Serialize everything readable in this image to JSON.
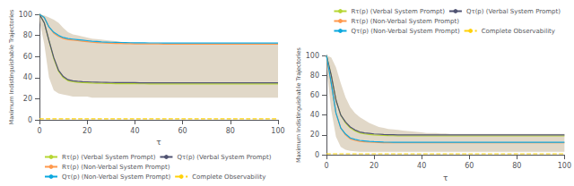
{
  "chart_data": [
    {
      "type": "line",
      "xlabel": "τ",
      "ylabel": "Maximum Indistinguishable Trajectories",
      "xlim": [
        0,
        100
      ],
      "ylim": [
        0,
        100
      ],
      "xticks": [
        0,
        20,
        40,
        60,
        80,
        100
      ],
      "yticks": [
        0,
        20,
        40,
        60,
        80,
        100
      ],
      "grid": false,
      "legend": "lower left",
      "x": [
        0,
        2,
        4,
        6,
        8,
        10,
        12,
        14,
        16,
        18,
        20,
        22,
        24,
        26,
        28,
        30,
        32,
        34,
        36,
        38,
        40,
        42,
        44,
        46,
        48,
        50,
        52,
        54,
        56,
        58,
        60,
        62,
        64,
        66,
        68,
        70,
        72,
        74,
        76,
        78,
        80,
        82,
        84,
        86,
        88,
        90,
        92,
        94,
        96,
        98,
        100
      ],
      "band": {
        "color": "#c8b89a",
        "lower": [
          94,
          72,
          40,
          28,
          25,
          24,
          23,
          22,
          22,
          22,
          22,
          21,
          21,
          21,
          21,
          21,
          21,
          21,
          21,
          21,
          21,
          21,
          21,
          21,
          21,
          21,
          21,
          21,
          21,
          21,
          21,
          21,
          21,
          21,
          21,
          21,
          21,
          21,
          21,
          21,
          21,
          21,
          21,
          21,
          21,
          21,
          21,
          21,
          21,
          21,
          21
        ],
        "upper": [
          100,
          99,
          97,
          95,
          92,
          87,
          83,
          81,
          80,
          79,
          78,
          77,
          76.5,
          76,
          75.5,
          75,
          74.5,
          74,
          73.5,
          73.2,
          73,
          73,
          72.9,
          72.8,
          72.8,
          72.8,
          72.7,
          72.7,
          72.7,
          72.7,
          72.7,
          72.7,
          72.7,
          72.7,
          72.7,
          72.7,
          72.7,
          72.7,
          72.7,
          72.7,
          72.7,
          72.7,
          72.7,
          72.7,
          72.7,
          72.7,
          72.7,
          72.7,
          72.7,
          72.7,
          72.7
        ]
      },
      "series": [
        {
          "name": "Rτ(p) (Verbal System Prompt)",
          "values": [
            100,
            92,
            75,
            58,
            46,
            40,
            37,
            36,
            35.5,
            35.2,
            35,
            34.8,
            34.7,
            34.6,
            34.5,
            34.4,
            34.3,
            34.3,
            34.2,
            34.2,
            34.2,
            34.1,
            34.1,
            34.0,
            34.0,
            34.0,
            34.0,
            34.0,
            34.0,
            34.0,
            34.0,
            34.0,
            34.0,
            34.0,
            34.0,
            34.0,
            34.0,
            34.0,
            34.0,
            34.0,
            34.0,
            34.0,
            34.0,
            34.0,
            34.0,
            34.0,
            34.0,
            34.0,
            34.0,
            34.0,
            34.0
          ]
        },
        {
          "name": "Qτ(p) (Verbal System Prompt)",
          "values": [
            100,
            92,
            75,
            59,
            47,
            41,
            38,
            37,
            36.5,
            36.2,
            36,
            35.8,
            35.7,
            35.6,
            35.5,
            35.4,
            35.3,
            35.3,
            35.2,
            35.2,
            35.2,
            35.1,
            35.1,
            35.0,
            35.0,
            35.0,
            35.0,
            35.0,
            35.0,
            35.0,
            35.0,
            35.0,
            35.0,
            35.0,
            35.0,
            35.0,
            35.0,
            35.0,
            35.0,
            35.0,
            35.0,
            35.0,
            35.0,
            35.0,
            35.0,
            35.0,
            35.0,
            35.0,
            35.0,
            35.0,
            35.0
          ]
        },
        {
          "name": "Rτ(p) (Non-Verbal System Prompt)",
          "values": [
            100,
            97,
            88,
            82,
            79,
            77,
            76,
            75.5,
            75,
            74.5,
            74,
            73.5,
            73.2,
            72.9,
            72.7,
            72.5,
            72.4,
            72.3,
            72.2,
            72.1,
            72.0,
            72.0,
            72.0,
            71.9,
            71.9,
            71.9,
            71.8,
            71.8,
            71.8,
            71.8,
            71.8,
            71.8,
            71.8,
            71.8,
            71.8,
            71.8,
            71.8,
            71.8,
            71.8,
            71.8,
            71.8,
            71.8,
            71.8,
            71.8,
            71.8,
            71.8,
            71.8,
            71.8,
            71.8,
            71.8,
            71.8
          ]
        },
        {
          "name": "Qτ(p) (Non-Verbal System Prompt)",
          "values": [
            100,
            97,
            88,
            83,
            80,
            78,
            77,
            76.5,
            76,
            75.5,
            75,
            74.5,
            74.2,
            73.9,
            73.7,
            73.5,
            73.4,
            73.3,
            73.2,
            73.1,
            73.0,
            73.0,
            73.0,
            72.9,
            72.9,
            72.9,
            72.8,
            72.8,
            72.8,
            72.8,
            72.8,
            72.8,
            72.8,
            72.8,
            72.8,
            72.8,
            72.8,
            72.8,
            72.8,
            72.8,
            72.8,
            72.8,
            72.8,
            72.8,
            72.8,
            72.8,
            72.8,
            72.8,
            72.8,
            72.8,
            72.8
          ]
        },
        {
          "name": "Complete Observability",
          "type": "hline",
          "value": 1.0,
          "line_style": "dashed"
        }
      ]
    },
    {
      "type": "line",
      "xlabel": "τ",
      "ylabel": "Maximum Indistinguishable Trajectories",
      "xlim": [
        0,
        100
      ],
      "ylim": [
        0,
        100
      ],
      "xticks": [
        0,
        20,
        40,
        60,
        80,
        100
      ],
      "yticks": [
        0,
        20,
        40,
        60,
        80,
        100
      ],
      "grid": false,
      "legend": "upper right",
      "x": [
        0,
        2,
        4,
        6,
        8,
        10,
        12,
        14,
        16,
        18,
        20,
        22,
        24,
        26,
        28,
        30,
        32,
        34,
        36,
        38,
        40,
        42,
        44,
        46,
        48,
        50,
        52,
        54,
        56,
        58,
        60,
        62,
        64,
        66,
        68,
        70,
        72,
        74,
        76,
        78,
        80,
        82,
        84,
        86,
        88,
        90,
        92,
        94,
        96,
        98,
        100
      ],
      "band": {
        "color": "#c8b89a",
        "lower": [
          88,
          45,
          18,
          8,
          5,
          4,
          3.5,
          3,
          3,
          3,
          3,
          3,
          3,
          3,
          3,
          3,
          3,
          3,
          3,
          3,
          3,
          3,
          3,
          3,
          3,
          3,
          3,
          3,
          3,
          3,
          3,
          3,
          3,
          3,
          3,
          3,
          3,
          3,
          3,
          3,
          3,
          3,
          3,
          3,
          3,
          3,
          3,
          3,
          3,
          3,
          3
        ],
        "upper": [
          100,
          98,
          88,
          72,
          58,
          48,
          42,
          38,
          35,
          32,
          30,
          28,
          27,
          26,
          25.5,
          25,
          24.5,
          24,
          23.5,
          23,
          22.5,
          22,
          22,
          22,
          21.5,
          21.5,
          21,
          21,
          21,
          21,
          21,
          21,
          21,
          21,
          21,
          21,
          21,
          21,
          21,
          21,
          21,
          21,
          21,
          21,
          21,
          21,
          21,
          21,
          21,
          21,
          21
        ]
      },
      "series": [
        {
          "name": "Rτ(p) (Verbal System Prompt)",
          "values": [
            100,
            80,
            55,
            40,
            32,
            27,
            24,
            22,
            21,
            20.5,
            20,
            19.8,
            19.5,
            19.3,
            19.2,
            19.0,
            19.0,
            19.0,
            19.0,
            19.0,
            19.0,
            19.0,
            19.0,
            19.0,
            19.0,
            19.0,
            19.0,
            19.0,
            19.0,
            19.0,
            19.0,
            19.0,
            19.0,
            19.0,
            19.0,
            19.0,
            19.0,
            19.0,
            19.0,
            19.0,
            19.0,
            19.0,
            19.0,
            19.0,
            19.0,
            19.0,
            19.0,
            19.0,
            19.0,
            19.0,
            19.0
          ]
        },
        {
          "name": "Qτ(p) (Verbal System Prompt)",
          "values": [
            100,
            80,
            55,
            40,
            33,
            28,
            25,
            23,
            22,
            21.5,
            21,
            20.8,
            20.5,
            20.3,
            20.2,
            20.0,
            20.0,
            20.0,
            20.0,
            20.0,
            20.0,
            20.0,
            20.0,
            20.0,
            20.0,
            20.0,
            20.0,
            20.0,
            20.0,
            20.0,
            20.0,
            20.0,
            20.0,
            20.0,
            20.0,
            20.0,
            20.0,
            20.0,
            20.0,
            20.0,
            20.0,
            20.0,
            20.0,
            20.0,
            20.0,
            20.0,
            20.0,
            20.0,
            20.0,
            20.0,
            20.0
          ]
        },
        {
          "name": "Rτ(p) (Non-Verbal System Prompt)",
          "values": [
            100,
            72,
            42,
            27,
            20,
            16,
            14.5,
            13.5,
            13,
            12.7,
            12.5,
            12.3,
            12.2,
            12.1,
            12.0,
            12.0,
            12.0,
            12.0,
            12.0,
            12.0,
            12.0,
            12.0,
            12.0,
            12.0,
            12.0,
            12.0,
            12.0,
            12.0,
            12.0,
            12.0,
            12.0,
            12.0,
            12.0,
            12.0,
            12.0,
            12.0,
            12.0,
            12.0,
            12.0,
            12.0,
            12.0,
            12.0,
            12.0,
            12.0,
            12.0,
            12.0,
            12.0,
            12.0,
            12.0,
            12.0,
            12.0
          ]
        },
        {
          "name": "Qτ(p) (Non-Verbal System Prompt)",
          "values": [
            100,
            72,
            42,
            27,
            21,
            17,
            15.5,
            14.5,
            14,
            13.5,
            13.2,
            13.0,
            12.8,
            12.7,
            12.6,
            12.5,
            12.5,
            12.5,
            12.5,
            12.5,
            12.5,
            12.5,
            12.5,
            12.5,
            12.5,
            12.5,
            12.5,
            12.5,
            12.5,
            12.5,
            12.5,
            12.5,
            12.5,
            12.5,
            12.5,
            12.5,
            12.5,
            12.5,
            12.5,
            12.5,
            12.5,
            12.5,
            12.5,
            12.5,
            12.5,
            12.5,
            12.5,
            12.5,
            12.5,
            12.5,
            12.5
          ]
        },
        {
          "name": "Complete Observability",
          "type": "hline",
          "value": 1.0,
          "line_style": "dashed"
        }
      ]
    }
  ]
}
